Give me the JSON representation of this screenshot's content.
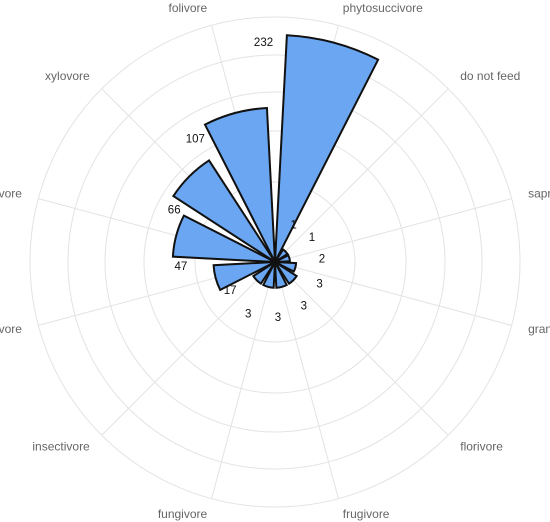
{
  "chart_data": {
    "type": "polar-bar",
    "categories": [
      "phytosuccivore",
      "do not feed",
      "saprovore",
      "granivore",
      "florivore",
      "frugivore",
      "fungivore",
      "insectivore",
      "radicivore",
      "nectarivore",
      "xylovore",
      "folivore"
    ],
    "values": [
      232,
      1,
      1,
      2,
      3,
      3,
      3,
      3,
      17,
      47,
      66,
      107
    ],
    "value_labels": [
      "232",
      "1",
      "1",
      "2",
      "3",
      "3",
      "3",
      "3",
      "17",
      "47",
      "66",
      "107"
    ],
    "scale": "sqrt",
    "r_max": 270,
    "grid": true,
    "colors": {
      "bar_fill": "#6aa6f2",
      "bar_stroke": "#111111",
      "grid": "#e3e3e3",
      "label": "#666666"
    }
  }
}
